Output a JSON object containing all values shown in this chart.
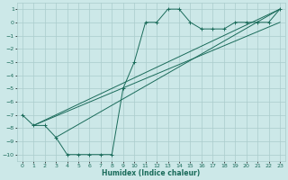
{
  "xlabel": "Humidex (Indice chaleur)",
  "bg_color": "#cce8e8",
  "grid_color": "#aacccc",
  "line_color": "#1a6b5a",
  "xlim": [
    -0.5,
    23.5
  ],
  "ylim": [
    -10.5,
    1.5
  ],
  "xticks": [
    0,
    1,
    2,
    3,
    4,
    5,
    6,
    7,
    8,
    9,
    10,
    11,
    12,
    13,
    14,
    15,
    16,
    17,
    18,
    19,
    20,
    21,
    22,
    23
  ],
  "yticks": [
    1,
    0,
    -1,
    -2,
    -3,
    -4,
    -5,
    -6,
    -7,
    -8,
    -9,
    -10
  ],
  "main_x": [
    0,
    1,
    2,
    3,
    4,
    5,
    6,
    7,
    8,
    9,
    10,
    11,
    12,
    13,
    14,
    15,
    16,
    17,
    18,
    19,
    20,
    21,
    22,
    23
  ],
  "main_y": [
    -7.0,
    -7.8,
    -7.8,
    -8.7,
    -10.0,
    -10.0,
    -10.0,
    -10.0,
    -10.0,
    -5.0,
    -3.0,
    0.0,
    0.0,
    1.0,
    1.0,
    0.0,
    -0.5,
    -0.5,
    -0.5,
    0.0,
    0.0,
    0.0,
    0.0,
    1.0
  ],
  "line1_x": [
    1,
    23
  ],
  "line1_y": [
    -7.8,
    1.0
  ],
  "line2_x": [
    1,
    23
  ],
  "line2_y": [
    -7.8,
    0.0
  ],
  "line3_x": [
    3,
    23
  ],
  "line3_y": [
    -8.7,
    1.0
  ]
}
